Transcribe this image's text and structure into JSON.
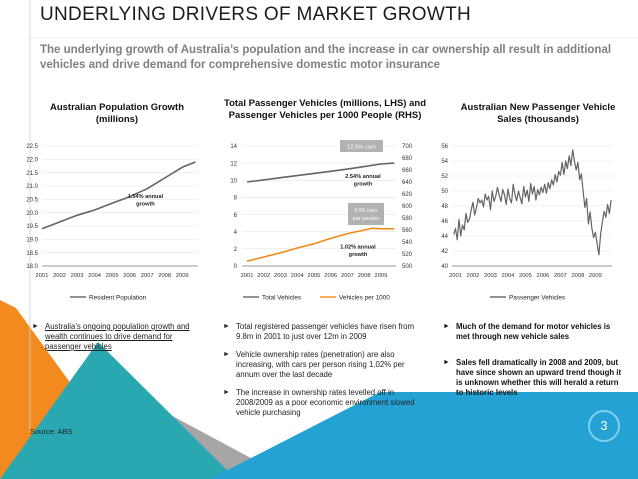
{
  "title": "UNDERLYING DRIVERS OF MARKET GROWTH",
  "subtitle": "The underlying growth of Australia’s population and the increase in car ownership all result in additional vehicles and drive demand for comprehensive domestic motor insurance",
  "colors": {
    "orange": "#f28a1e",
    "blue": "#25a2d4",
    "dark_line": "#646464",
    "note_bg": "#b2b2b2"
  },
  "chart_data": [
    {
      "type": "line",
      "title": "Australian Population Growth (millions)",
      "x_ticks": [
        "2001",
        "2002",
        "2003",
        "2004",
        "2005",
        "2006",
        "2007",
        "2008",
        "2009"
      ],
      "y_ticks": [
        "18.0",
        "18.5",
        "19.0",
        "19.5",
        "20.0",
        "20.5",
        "21.0",
        "21.5",
        "22.0",
        "22.5"
      ],
      "ylim": [
        18.0,
        22.5
      ],
      "xlim": [
        2001,
        2009.9
      ],
      "series": [
        {
          "name": "Resident Population",
          "x": [
            2001,
            2002,
            2003,
            2004,
            2005,
            2006,
            2007,
            2008,
            2009,
            2009.75
          ],
          "y": [
            19.4,
            19.65,
            19.9,
            20.1,
            20.35,
            20.6,
            20.9,
            21.3,
            21.7,
            21.9
          ]
        }
      ],
      "annotations": [
        {
          "text": "1.54% annual growth",
          "x": 2006.9,
          "y": 20.4
        }
      ]
    },
    {
      "type": "line",
      "title": "Total Passenger Vehicles (millions, LHS) and Passenger Vehicles per 1000 People (RHS)",
      "x_ticks": [
        "2001",
        "2002",
        "2003",
        "2004",
        "2005",
        "2006",
        "2007",
        "2008",
        "2009"
      ],
      "y_ticks_left": [
        "0",
        "2",
        "4",
        "6",
        "8",
        "10",
        "12",
        "14"
      ],
      "y_ticks_right": [
        "500",
        "520",
        "540",
        "560",
        "580",
        "600",
        "620",
        "640",
        "660",
        "680",
        "700"
      ],
      "ylim_left": [
        0,
        14
      ],
      "ylim_right": [
        500,
        700
      ],
      "xlim": [
        2000.7,
        2009.9
      ],
      "series": [
        {
          "name": "Total Vehicles",
          "axis": "left",
          "x": [
            2001,
            2002,
            2003,
            2004,
            2005,
            2006,
            2007,
            2008,
            2009,
            2009.8
          ],
          "y": [
            9.8,
            10.05,
            10.3,
            10.55,
            10.8,
            11.05,
            11.3,
            11.6,
            11.9,
            12.0
          ]
        },
        {
          "name": "Vehicles per 1000",
          "axis": "right",
          "x": [
            2001,
            2002,
            2003,
            2004,
            2005,
            2006,
            2007,
            2008,
            2008.5,
            2009,
            2009.8
          ],
          "y": [
            508,
            515,
            522,
            530,
            537,
            546,
            554,
            560,
            563,
            562,
            562
          ]
        }
      ],
      "annotations": [
        {
          "text": "12.0m cars",
          "boxed": true
        },
        {
          "text": "2.54% annual growth",
          "boxed": false
        },
        {
          "text": "0.55 cars per person",
          "boxed": true
        },
        {
          "text": "1.02% annual growth",
          "boxed": false
        }
      ]
    },
    {
      "type": "line",
      "title": "Australian New Passenger Vehicle Sales (thousands)",
      "x_ticks": [
        "2001",
        "2002",
        "2003",
        "2004",
        "2005",
        "2006",
        "2007",
        "2008",
        "2009"
      ],
      "y_ticks": [
        "40",
        "42",
        "44",
        "46",
        "48",
        "50",
        "52",
        "54",
        "56"
      ],
      "ylim": [
        40,
        56
      ],
      "xlim": [
        2000.8,
        2009.95
      ],
      "series": [
        {
          "name": "Passenger Vehicles",
          "x": [
            2000.9,
            2001.0,
            2001.1,
            2001.2,
            2001.3,
            2001.4,
            2001.5,
            2001.6,
            2001.7,
            2001.8,
            2001.9,
            2002.0,
            2002.1,
            2002.2,
            2002.3,
            2002.4,
            2002.5,
            2002.6,
            2002.7,
            2002.8,
            2002.9,
            2003.0,
            2003.1,
            2003.2,
            2003.3,
            2003.4,
            2003.5,
            2003.6,
            2003.7,
            2003.8,
            2003.9,
            2004.0,
            2004.1,
            2004.2,
            2004.3,
            2004.4,
            2004.5,
            2004.6,
            2004.7,
            2004.8,
            2004.9,
            2005.0,
            2005.1,
            2005.2,
            2005.3,
            2005.4,
            2005.5,
            2005.6,
            2005.7,
            2005.8,
            2005.9,
            2006.0,
            2006.1,
            2006.2,
            2006.3,
            2006.4,
            2006.5,
            2006.6,
            2006.7,
            2006.8,
            2006.9,
            2007.0,
            2007.1,
            2007.2,
            2007.3,
            2007.4,
            2007.5,
            2007.6,
            2007.7,
            2007.8,
            2007.9,
            2008.0,
            2008.1,
            2008.2,
            2008.3,
            2008.4,
            2008.5,
            2008.6,
            2008.7,
            2008.8,
            2008.9,
            2009.0,
            2009.1,
            2009.2,
            2009.3,
            2009.4,
            2009.5,
            2009.6,
            2009.7,
            2009.8,
            2009.9
          ],
          "y": [
            44.2,
            45,
            43.5,
            46.2,
            44,
            45.5,
            44.8,
            47,
            45.8,
            46.3,
            47.5,
            48.5,
            46.8,
            47.8,
            49,
            48.4,
            48.8,
            47.9,
            49.6,
            48.8,
            49.3,
            47.5,
            50,
            48.6,
            49.3,
            50.5,
            49.4,
            48.6,
            50.2,
            49.5,
            48.2,
            50.3,
            49,
            48.4,
            50.9,
            49.5,
            48.7,
            50,
            49.1,
            48.3,
            50.6,
            49.2,
            50.1,
            48.6,
            51,
            49.6,
            50.6,
            48.8,
            50.2,
            49.5,
            50.5,
            49.8,
            50.9,
            49.7,
            51.1,
            50.3,
            51.5,
            50.8,
            52.2,
            51.2,
            52.6,
            52.1,
            53.8,
            52.2,
            54,
            53,
            54.7,
            53.4,
            55.5,
            54,
            52.8,
            53.8,
            51.5,
            52.3,
            50,
            47.8,
            49,
            45.6,
            47.2,
            45,
            43.8,
            44.5,
            43,
            41.5,
            44.2,
            45.9,
            47.3,
            46.5,
            48.2,
            47,
            48.8
          ]
        }
      ]
    }
  ],
  "legends": {
    "chart1": [
      "Resident Population"
    ],
    "chart2": [
      "Total Vehicles",
      "Vehicles per 1000"
    ],
    "chart3": [
      "Passenger Vehicles"
    ]
  },
  "bullets": {
    "col1": [
      "Australia’s ongoing population growth and wealth continues to drive demand for passenger vehicles"
    ],
    "col2": [
      "Total registered passenger vehicles have risen from 9.8m in 2001 to just over 12m in 2009",
      "Vehicle ownership rates (penetration) are also increasing, with cars per person rising 1.02% per annum over the last decade",
      "The increase in ownership rates levelled off in 2008/2009 as a poor economic environment slowed vehicle purchasing"
    ],
    "col3": [
      "Much of the demand for motor vehicles is met through new vehicle sales",
      "Sales fell dramatically in 2008 and 2009, but have since shown an upward trend though it is unknown whether this will herald a return to historic levels"
    ],
    "arrow": "►"
  },
  "source": "Source: ABS",
  "page_number": "3"
}
